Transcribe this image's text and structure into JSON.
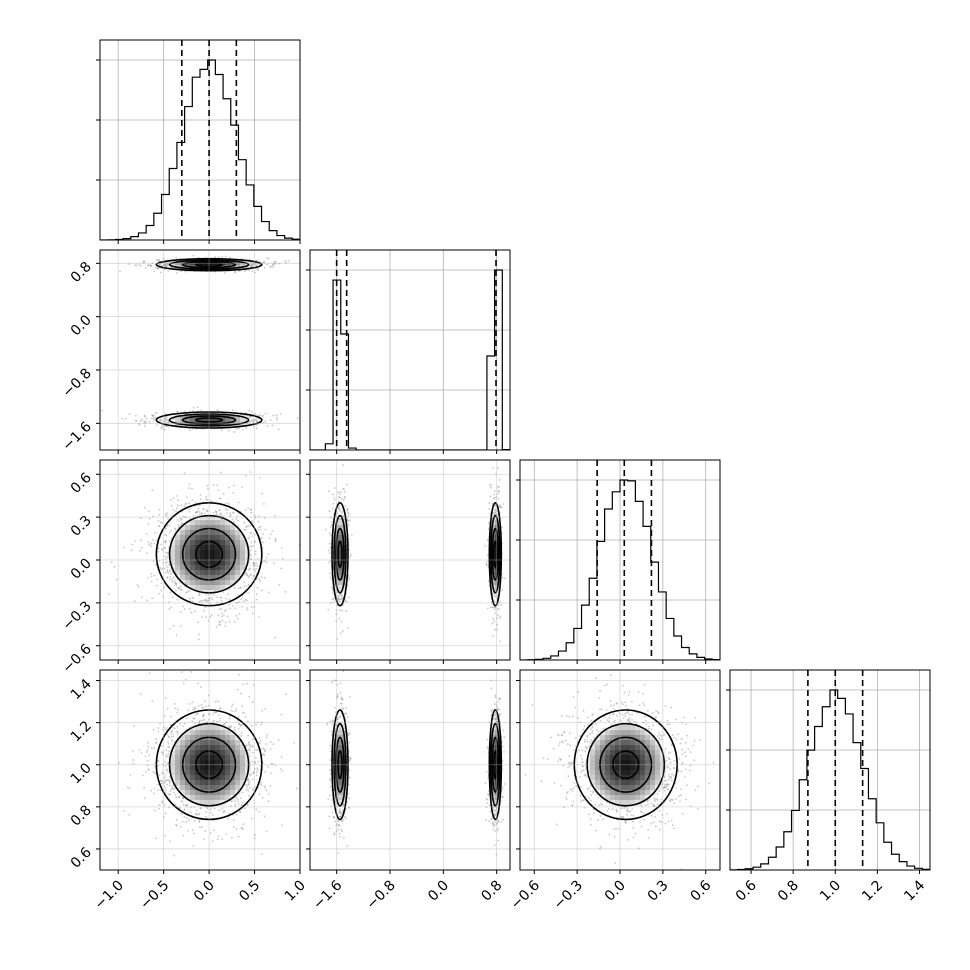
{
  "chart_data": {
    "type": "corner",
    "parameters": [
      {
        "range": [
          -1.2,
          1.0
        ],
        "ticks": [
          -1.0,
          -0.5,
          0.0,
          0.5,
          1.0
        ],
        "tick_labels": [
          "−1.0",
          "−0.5",
          "0.0",
          "0.5",
          "1.0"
        ],
        "quantiles": [
          -0.3,
          0.0,
          0.3
        ],
        "modes": [
          {
            "center": 0.0,
            "sigma": 0.29,
            "weight": 1.0
          }
        ]
      },
      {
        "range": [
          -2.0,
          1.0
        ],
        "ticks": [
          -1.6,
          -0.8,
          0.0,
          0.8
        ],
        "tick_labels": [
          "−1.6",
          "−0.8",
          "0.0",
          "0.8"
        ],
        "quantiles": [
          -1.6,
          -1.45,
          0.79
        ],
        "modes": [
          {
            "center": -1.55,
            "sigma": 0.06,
            "weight": 0.5
          },
          {
            "center": 0.78,
            "sigma": 0.045,
            "weight": 0.5
          }
        ]
      },
      {
        "range": [
          -0.7,
          0.7
        ],
        "ticks": [
          -0.6,
          -0.3,
          0.0,
          0.3,
          0.6
        ],
        "tick_labels": [
          "−0.6",
          "−0.3",
          "0.0",
          "0.3",
          "0.6"
        ],
        "quantiles": [
          -0.16,
          0.03,
          0.22
        ],
        "modes": [
          {
            "center": 0.04,
            "sigma": 0.18,
            "weight": 1.0
          }
        ]
      },
      {
        "range": [
          0.5,
          1.45
        ],
        "ticks": [
          0.6,
          0.8,
          1.0,
          1.2,
          1.4
        ],
        "tick_labels": [
          "0.6",
          "0.8",
          "1.0",
          "1.2",
          "1.4"
        ],
        "quantiles": [
          0.87,
          1.0,
          1.13
        ],
        "modes": [
          {
            "center": 1.0,
            "sigma": 0.13,
            "weight": 1.0
          }
        ]
      }
    ],
    "grid": true,
    "contour_levels": [
      "0.5-sigma",
      "1-sigma",
      "1.5-sigma",
      "2-sigma"
    ],
    "colors": {
      "line": "#000000",
      "grid": "#b0b0b0",
      "density_light": "#f2f2f2",
      "density_dark": "#1a1a1a",
      "sample_points": "#9a9a9a"
    }
  }
}
